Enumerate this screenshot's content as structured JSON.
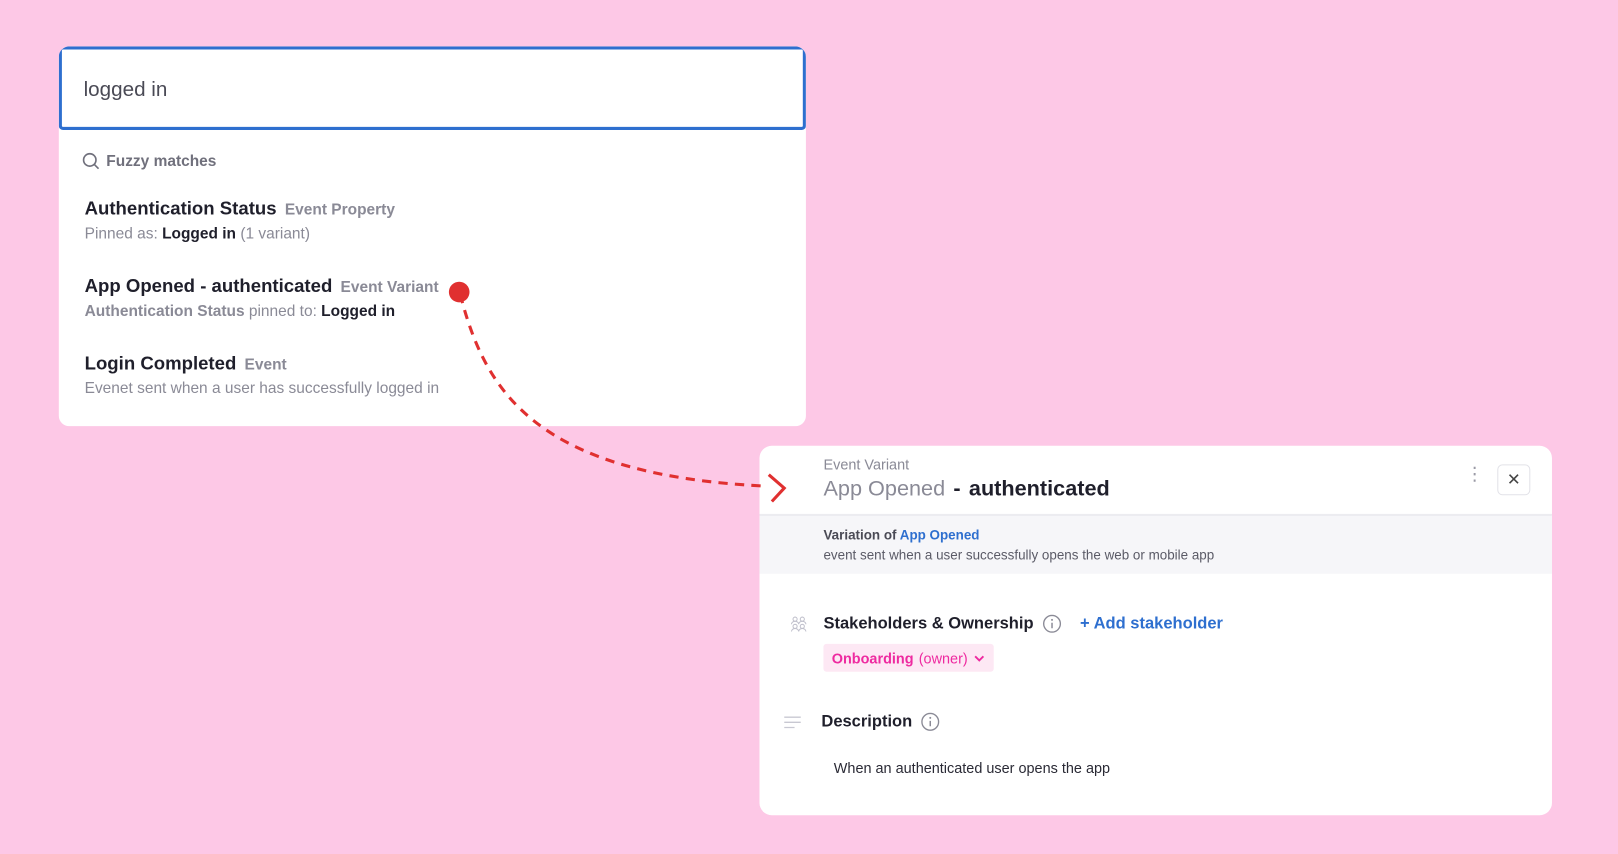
{
  "search": {
    "query": "logged in",
    "section_label": "Fuzzy matches",
    "results": [
      {
        "title": "Authentication Status",
        "type": "Event Property",
        "sub_prefix": "Pinned as:",
        "sub_value": "Logged in",
        "sub_suffix": "(1 variant)"
      },
      {
        "title": "App Opened - authenticated",
        "type": "Event Variant",
        "sub_prefix": "Authentication Status",
        "sub_mid": "pinned to:",
        "sub_value": "Logged in"
      },
      {
        "title": "Login Completed",
        "type": "Event",
        "sub": "Evenet sent when a user has successfully logged in"
      }
    ]
  },
  "detail": {
    "kind": "Event Variant",
    "base_event": "App Opened",
    "separator": "-",
    "variant_name": "authenticated",
    "variation_of_label": "Variation of",
    "variation_of_link": "App Opened",
    "base_description": "event sent when a user successfully opens the web or mobile app",
    "stakeholders_label": "Stakeholders & Ownership",
    "add_stakeholder": "+ Add stakeholder",
    "owner_team": "Onboarding",
    "owner_role": "(owner)",
    "description_label": "Description",
    "description": "When an authenticated user opens the app"
  },
  "colors": {
    "background": "#fdc8e6",
    "accent": "#2e6fcf",
    "arrow": "#e03030",
    "owner_tag": "#ee2aa0"
  }
}
